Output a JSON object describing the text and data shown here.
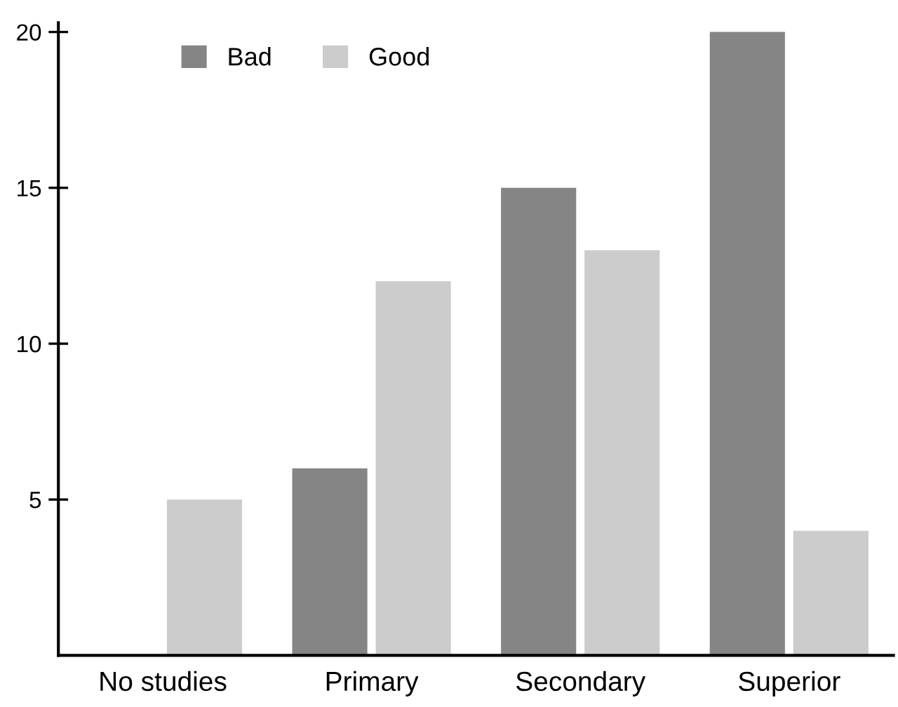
{
  "chart_data": {
    "type": "bar",
    "categories": [
      "No studies",
      "Primary",
      "Secondary",
      "Superior"
    ],
    "series": [
      {
        "name": "Bad",
        "color": "#858585",
        "values": [
          0,
          6,
          15,
          20
        ]
      },
      {
        "name": "Good",
        "color": "#cccccc",
        "values": [
          5,
          12,
          13,
          4
        ]
      }
    ],
    "ylim": [
      0,
      20.3
    ],
    "yticks": [
      5,
      10,
      15,
      20
    ],
    "grid": false,
    "legend": "top left"
  }
}
